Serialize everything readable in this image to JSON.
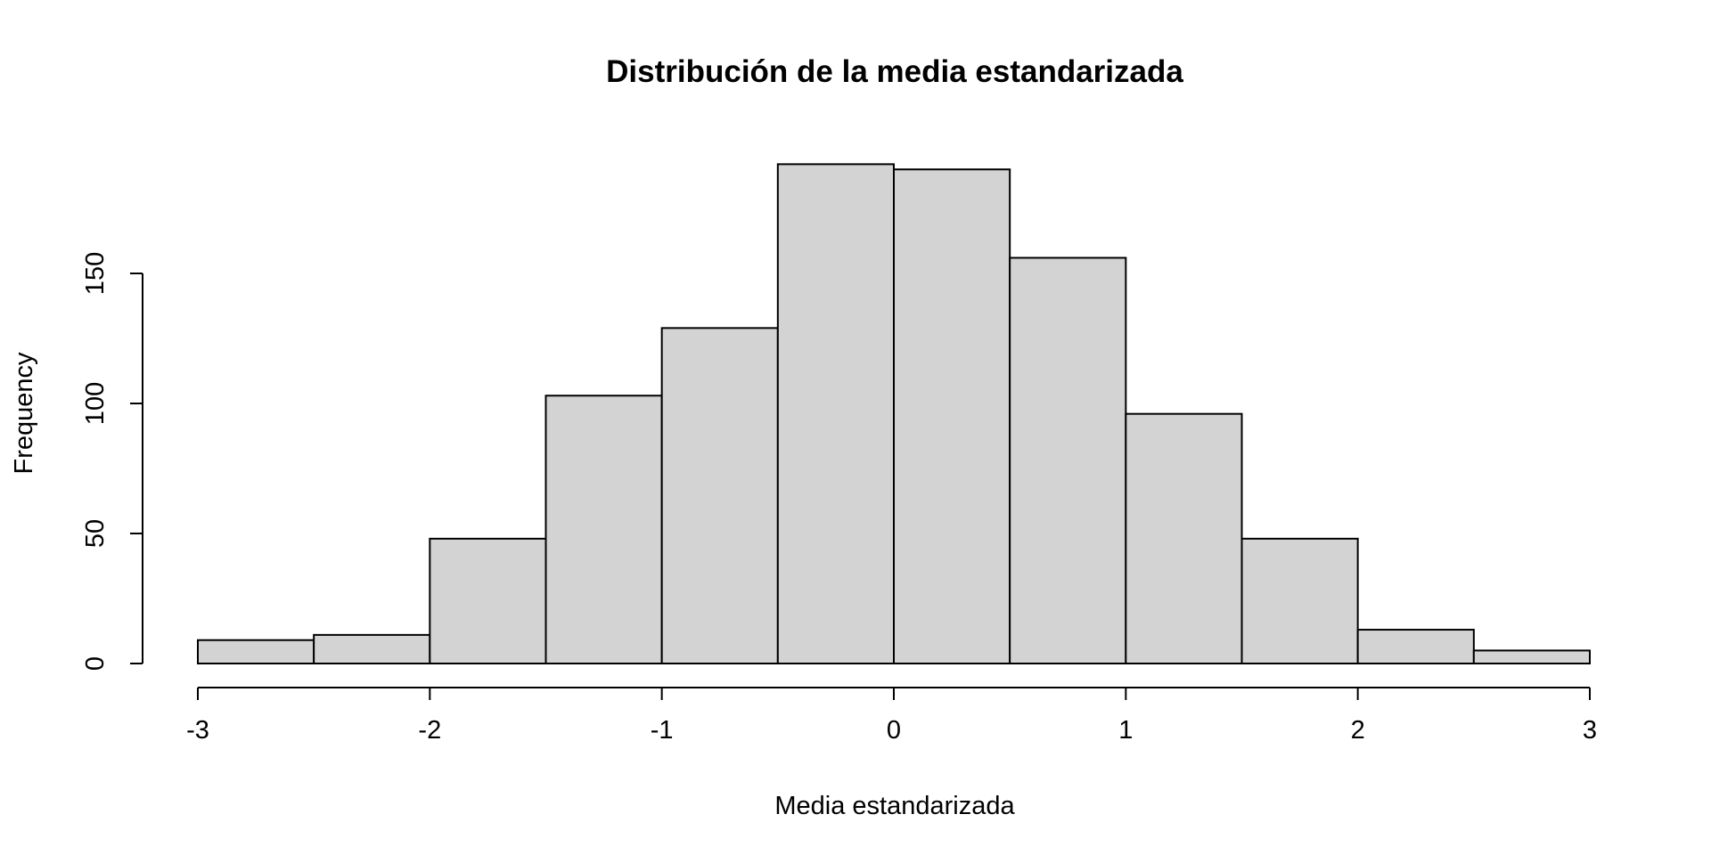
{
  "chart_data": {
    "type": "bar",
    "subtype": "histogram",
    "title": "Distribución de la media estandarizada",
    "xlabel": "Media estandarizada",
    "ylabel": "Frequency",
    "bins": [
      {
        "x0": -3.0,
        "x1": -2.5,
        "count": 9
      },
      {
        "x0": -2.5,
        "x1": -2.0,
        "count": 11
      },
      {
        "x0": -2.0,
        "x1": -1.5,
        "count": 48
      },
      {
        "x0": -1.5,
        "x1": -1.0,
        "count": 103
      },
      {
        "x0": -1.0,
        "x1": -0.5,
        "count": 129
      },
      {
        "x0": -0.5,
        "x1": 0.0,
        "count": 192
      },
      {
        "x0": 0.0,
        "x1": 0.5,
        "count": 190
      },
      {
        "x0": 0.5,
        "x1": 1.0,
        "count": 156
      },
      {
        "x0": 1.0,
        "x1": 1.5,
        "count": 96
      },
      {
        "x0": 1.5,
        "x1": 2.0,
        "count": 48
      },
      {
        "x0": 2.0,
        "x1": 2.5,
        "count": 13
      },
      {
        "x0": 2.5,
        "x1": 3.0,
        "count": 5
      }
    ],
    "xlim": [
      -3,
      3
    ],
    "ylim": [
      0,
      200
    ],
    "xticks": [
      -3,
      -2,
      -1,
      0,
      1,
      2,
      3
    ],
    "xtick_labels": [
      "-3",
      "-2",
      "-1",
      "0",
      "1",
      "2",
      "3"
    ],
    "yticks": [
      0,
      50,
      100,
      150
    ],
    "ytick_labels": [
      "0",
      "50",
      "100",
      "150"
    ],
    "grid": false,
    "legend": "none",
    "colors": {
      "bar_fill": "#d3d3d3",
      "bar_stroke": "#000000",
      "background": "#ffffff"
    }
  }
}
